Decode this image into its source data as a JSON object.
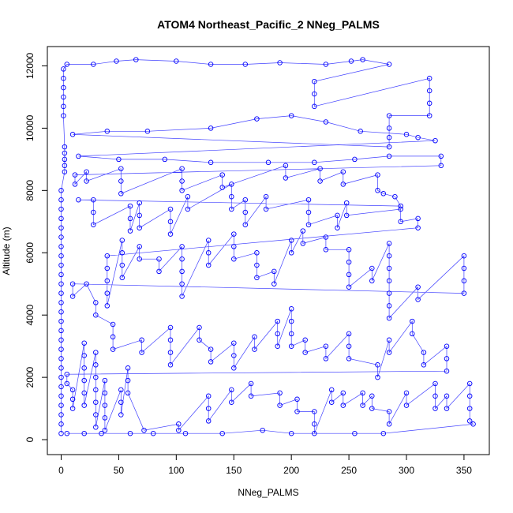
{
  "chart_data": {
    "type": "scatter",
    "title": "ATOM4 Northeast_Pacific_2 NNeg_PALMS",
    "xlabel": "NNeg_PALMS",
    "ylabel": "Altitude (m)",
    "xlim": [
      -12,
      372
    ],
    "ylim": [
      -480,
      12620
    ],
    "x_ticks": [
      0,
      50,
      100,
      150,
      200,
      250,
      300,
      350
    ],
    "y_ticks": [
      0,
      2000,
      4000,
      6000,
      8000,
      10000,
      12000
    ],
    "grid": false,
    "marker": "open-circle",
    "series_color": "#0000ff",
    "connected": true,
    "series": [
      {
        "points": [
          [
            0,
            200
          ],
          [
            0,
            500
          ],
          [
            0,
            800
          ],
          [
            0,
            1100
          ],
          [
            0,
            1400
          ],
          [
            0,
            1700
          ],
          [
            0,
            2000
          ],
          [
            0,
            2300
          ],
          [
            0,
            2600
          ],
          [
            0,
            2900
          ],
          [
            0,
            3200
          ],
          [
            0,
            3500
          ],
          [
            0,
            3800
          ],
          [
            0,
            4100
          ],
          [
            0,
            4400
          ],
          [
            0,
            4700
          ],
          [
            0,
            5000
          ],
          [
            0,
            5300
          ],
          [
            0,
            5600
          ],
          [
            0,
            5900
          ],
          [
            0,
            6200
          ],
          [
            0,
            6500
          ],
          [
            0,
            6800
          ],
          [
            0,
            7100
          ],
          [
            0,
            7400
          ],
          [
            0,
            7700
          ],
          [
            0,
            8000
          ],
          [
            3,
            8600
          ],
          [
            3,
            8800
          ],
          [
            3,
            9000
          ],
          [
            3,
            9200
          ],
          [
            3,
            9400
          ],
          [
            2,
            10400
          ],
          [
            2,
            10700
          ],
          [
            2,
            11000
          ],
          [
            2,
            11300
          ],
          [
            2,
            11600
          ],
          [
            2,
            11900
          ],
          [
            5,
            12050
          ],
          [
            28,
            12050
          ],
          [
            48,
            12150
          ],
          [
            65,
            12200
          ],
          [
            100,
            12150
          ],
          [
            130,
            12050
          ],
          [
            160,
            12050
          ],
          [
            190,
            12100
          ],
          [
            230,
            12050
          ],
          [
            252,
            12150
          ],
          [
            262,
            12200
          ],
          [
            285,
            12050
          ],
          [
            220,
            11500
          ],
          [
            220,
            11100
          ],
          [
            220,
            10700
          ],
          [
            320,
            11600
          ],
          [
            320,
            11200
          ],
          [
            320,
            10800
          ],
          [
            320,
            10400
          ],
          [
            285,
            10400
          ],
          [
            285,
            10000
          ],
          [
            285,
            9700
          ],
          [
            285,
            9400
          ],
          [
            10,
            9800
          ],
          [
            40,
            9900
          ],
          [
            75,
            9900
          ],
          [
            130,
            10000
          ],
          [
            170,
            10300
          ],
          [
            200,
            10400
          ],
          [
            230,
            10200
          ],
          [
            260,
            9900
          ],
          [
            300,
            9800
          ],
          [
            310,
            9700
          ],
          [
            325,
            9600
          ],
          [
            15,
            9100
          ],
          [
            50,
            9000
          ],
          [
            90,
            9000
          ],
          [
            130,
            8900
          ],
          [
            180,
            8900
          ],
          [
            220,
            8900
          ],
          [
            255,
            9000
          ],
          [
            285,
            9100
          ],
          [
            330,
            9100
          ],
          [
            330,
            8800
          ],
          [
            12,
            8500
          ],
          [
            12,
            8200
          ],
          [
            22,
            8600
          ],
          [
            22,
            8300
          ],
          [
            52,
            8700
          ],
          [
            52,
            8300
          ],
          [
            52,
            7900
          ],
          [
            105,
            8700
          ],
          [
            105,
            8300
          ],
          [
            105,
            8000
          ],
          [
            140,
            8500
          ],
          [
            140,
            8100
          ],
          [
            195,
            8800
          ],
          [
            195,
            8400
          ],
          [
            225,
            8700
          ],
          [
            225,
            8300
          ],
          [
            245,
            8600
          ],
          [
            245,
            8200
          ],
          [
            275,
            8500
          ],
          [
            275,
            8000
          ],
          [
            280,
            7900
          ],
          [
            290,
            7800
          ],
          [
            295,
            7500
          ],
          [
            15,
            7700
          ],
          [
            28,
            7700
          ],
          [
            28,
            7300
          ],
          [
            28,
            6900
          ],
          [
            60,
            7500
          ],
          [
            60,
            7100
          ],
          [
            60,
            6700
          ],
          [
            68,
            7600
          ],
          [
            68,
            7200
          ],
          [
            68,
            6800
          ],
          [
            95,
            7400
          ],
          [
            95,
            7000
          ],
          [
            95,
            6600
          ],
          [
            110,
            7800
          ],
          [
            110,
            7400
          ],
          [
            148,
            8200
          ],
          [
            148,
            7800
          ],
          [
            148,
            7400
          ],
          [
            160,
            7700
          ],
          [
            160,
            7300
          ],
          [
            160,
            6900
          ],
          [
            178,
            7800
          ],
          [
            178,
            7400
          ],
          [
            215,
            7700
          ],
          [
            215,
            7300
          ],
          [
            215,
            6900
          ],
          [
            240,
            7200
          ],
          [
            240,
            6800
          ],
          [
            248,
            7600
          ],
          [
            248,
            7200
          ],
          [
            295,
            7400
          ],
          [
            295,
            7000
          ],
          [
            310,
            7100
          ],
          [
            310,
            6800
          ],
          [
            40,
            5900
          ],
          [
            40,
            5500
          ],
          [
            40,
            5100
          ],
          [
            40,
            4700
          ],
          [
            40,
            4300
          ],
          [
            53,
            6400
          ],
          [
            53,
            6000
          ],
          [
            53,
            5600
          ],
          [
            53,
            5200
          ],
          [
            68,
            6200
          ],
          [
            68,
            5800
          ],
          [
            85,
            5800
          ],
          [
            85,
            5400
          ],
          [
            105,
            6200
          ],
          [
            105,
            5800
          ],
          [
            105,
            5400
          ],
          [
            105,
            5000
          ],
          [
            105,
            4600
          ],
          [
            128,
            6400
          ],
          [
            128,
            6000
          ],
          [
            128,
            5600
          ],
          [
            150,
            6600
          ],
          [
            150,
            6200
          ],
          [
            150,
            5800
          ],
          [
            170,
            6000
          ],
          [
            170,
            5600
          ],
          [
            170,
            5200
          ],
          [
            185,
            5400
          ],
          [
            185,
            5000
          ],
          [
            200,
            6400
          ],
          [
            200,
            6000
          ],
          [
            210,
            6700
          ],
          [
            210,
            6300
          ],
          [
            230,
            6500
          ],
          [
            230,
            6100
          ],
          [
            250,
            6100
          ],
          [
            250,
            5700
          ],
          [
            250,
            5300
          ],
          [
            250,
            4900
          ],
          [
            270,
            5500
          ],
          [
            270,
            5100
          ],
          [
            285,
            6300
          ],
          [
            285,
            5900
          ],
          [
            285,
            5500
          ],
          [
            285,
            5100
          ],
          [
            285,
            4700
          ],
          [
            285,
            4300
          ],
          [
            285,
            3900
          ],
          [
            310,
            4900
          ],
          [
            310,
            4500
          ],
          [
            350,
            5900
          ],
          [
            350,
            5500
          ],
          [
            350,
            5100
          ],
          [
            350,
            4700
          ],
          [
            10,
            5000
          ],
          [
            10,
            4600
          ],
          [
            22,
            5000
          ],
          [
            30,
            4400
          ],
          [
            30,
            4000
          ],
          [
            45,
            3700
          ],
          [
            45,
            3300
          ],
          [
            45,
            2900
          ],
          [
            70,
            3200
          ],
          [
            70,
            2800
          ],
          [
            95,
            3600
          ],
          [
            95,
            3200
          ],
          [
            95,
            2800
          ],
          [
            95,
            2400
          ],
          [
            120,
            3600
          ],
          [
            120,
            3200
          ],
          [
            130,
            2900
          ],
          [
            130,
            2500
          ],
          [
            150,
            3100
          ],
          [
            150,
            2700
          ],
          [
            150,
            2300
          ],
          [
            168,
            3300
          ],
          [
            168,
            2900
          ],
          [
            188,
            3800
          ],
          [
            188,
            3400
          ],
          [
            188,
            3000
          ],
          [
            200,
            4200
          ],
          [
            200,
            3800
          ],
          [
            200,
            3400
          ],
          [
            200,
            3000
          ],
          [
            212,
            3200
          ],
          [
            212,
            2800
          ],
          [
            230,
            3000
          ],
          [
            230,
            2600
          ],
          [
            250,
            3400
          ],
          [
            250,
            3000
          ],
          [
            250,
            2600
          ],
          [
            275,
            2400
          ],
          [
            275,
            2000
          ],
          [
            285,
            3200
          ],
          [
            285,
            2800
          ],
          [
            305,
            3800
          ],
          [
            305,
            3400
          ],
          [
            315,
            2800
          ],
          [
            315,
            2400
          ],
          [
            335,
            3000
          ],
          [
            335,
            2600
          ],
          [
            335,
            2200
          ],
          [
            5,
            2100
          ],
          [
            5,
            1800
          ],
          [
            10,
            1600
          ],
          [
            10,
            1300
          ],
          [
            10,
            1000
          ],
          [
            20,
            3100
          ],
          [
            20,
            2700
          ],
          [
            20,
            2300
          ],
          [
            20,
            1900
          ],
          [
            20,
            1500
          ],
          [
            20,
            1100
          ],
          [
            30,
            2800
          ],
          [
            30,
            2400
          ],
          [
            30,
            2000
          ],
          [
            30,
            1600
          ],
          [
            30,
            1200
          ],
          [
            30,
            800
          ],
          [
            30,
            400
          ],
          [
            38,
            1900
          ],
          [
            38,
            1500
          ],
          [
            38,
            1100
          ],
          [
            38,
            700
          ],
          [
            38,
            300
          ],
          [
            52,
            1600
          ],
          [
            52,
            1200
          ],
          [
            52,
            800
          ],
          [
            58,
            2300
          ],
          [
            58,
            1900
          ],
          [
            58,
            1500
          ],
          [
            72,
            300
          ],
          [
            102,
            500
          ],
          [
            102,
            300
          ],
          [
            128,
            1400
          ],
          [
            128,
            1000
          ],
          [
            128,
            600
          ],
          [
            148,
            1600
          ],
          [
            148,
            1200
          ],
          [
            165,
            1800
          ],
          [
            165,
            1400
          ],
          [
            190,
            1500
          ],
          [
            190,
            1100
          ],
          [
            205,
            1300
          ],
          [
            205,
            900
          ],
          [
            220,
            900
          ],
          [
            220,
            500
          ],
          [
            220,
            200
          ],
          [
            235,
            1600
          ],
          [
            235,
            1200
          ],
          [
            245,
            1500
          ],
          [
            245,
            1100
          ],
          [
            262,
            1500
          ],
          [
            262,
            1100
          ],
          [
            270,
            1400
          ],
          [
            270,
            1000
          ],
          [
            285,
            900
          ],
          [
            285,
            500
          ],
          [
            300,
            1500
          ],
          [
            300,
            1100
          ],
          [
            325,
            1800
          ],
          [
            325,
            1400
          ],
          [
            325,
            1000
          ],
          [
            335,
            1400
          ],
          [
            335,
            1000
          ],
          [
            355,
            1800
          ],
          [
            355,
            1400
          ],
          [
            355,
            1000
          ],
          [
            355,
            600
          ],
          [
            358,
            500
          ],
          [
            280,
            200
          ],
          [
            255,
            200
          ],
          [
            200,
            200
          ],
          [
            175,
            300
          ],
          [
            140,
            200
          ],
          [
            108,
            200
          ],
          [
            80,
            200
          ],
          [
            60,
            200
          ],
          [
            35,
            200
          ],
          [
            20,
            200
          ],
          [
            5,
            200
          ]
        ]
      }
    ]
  }
}
